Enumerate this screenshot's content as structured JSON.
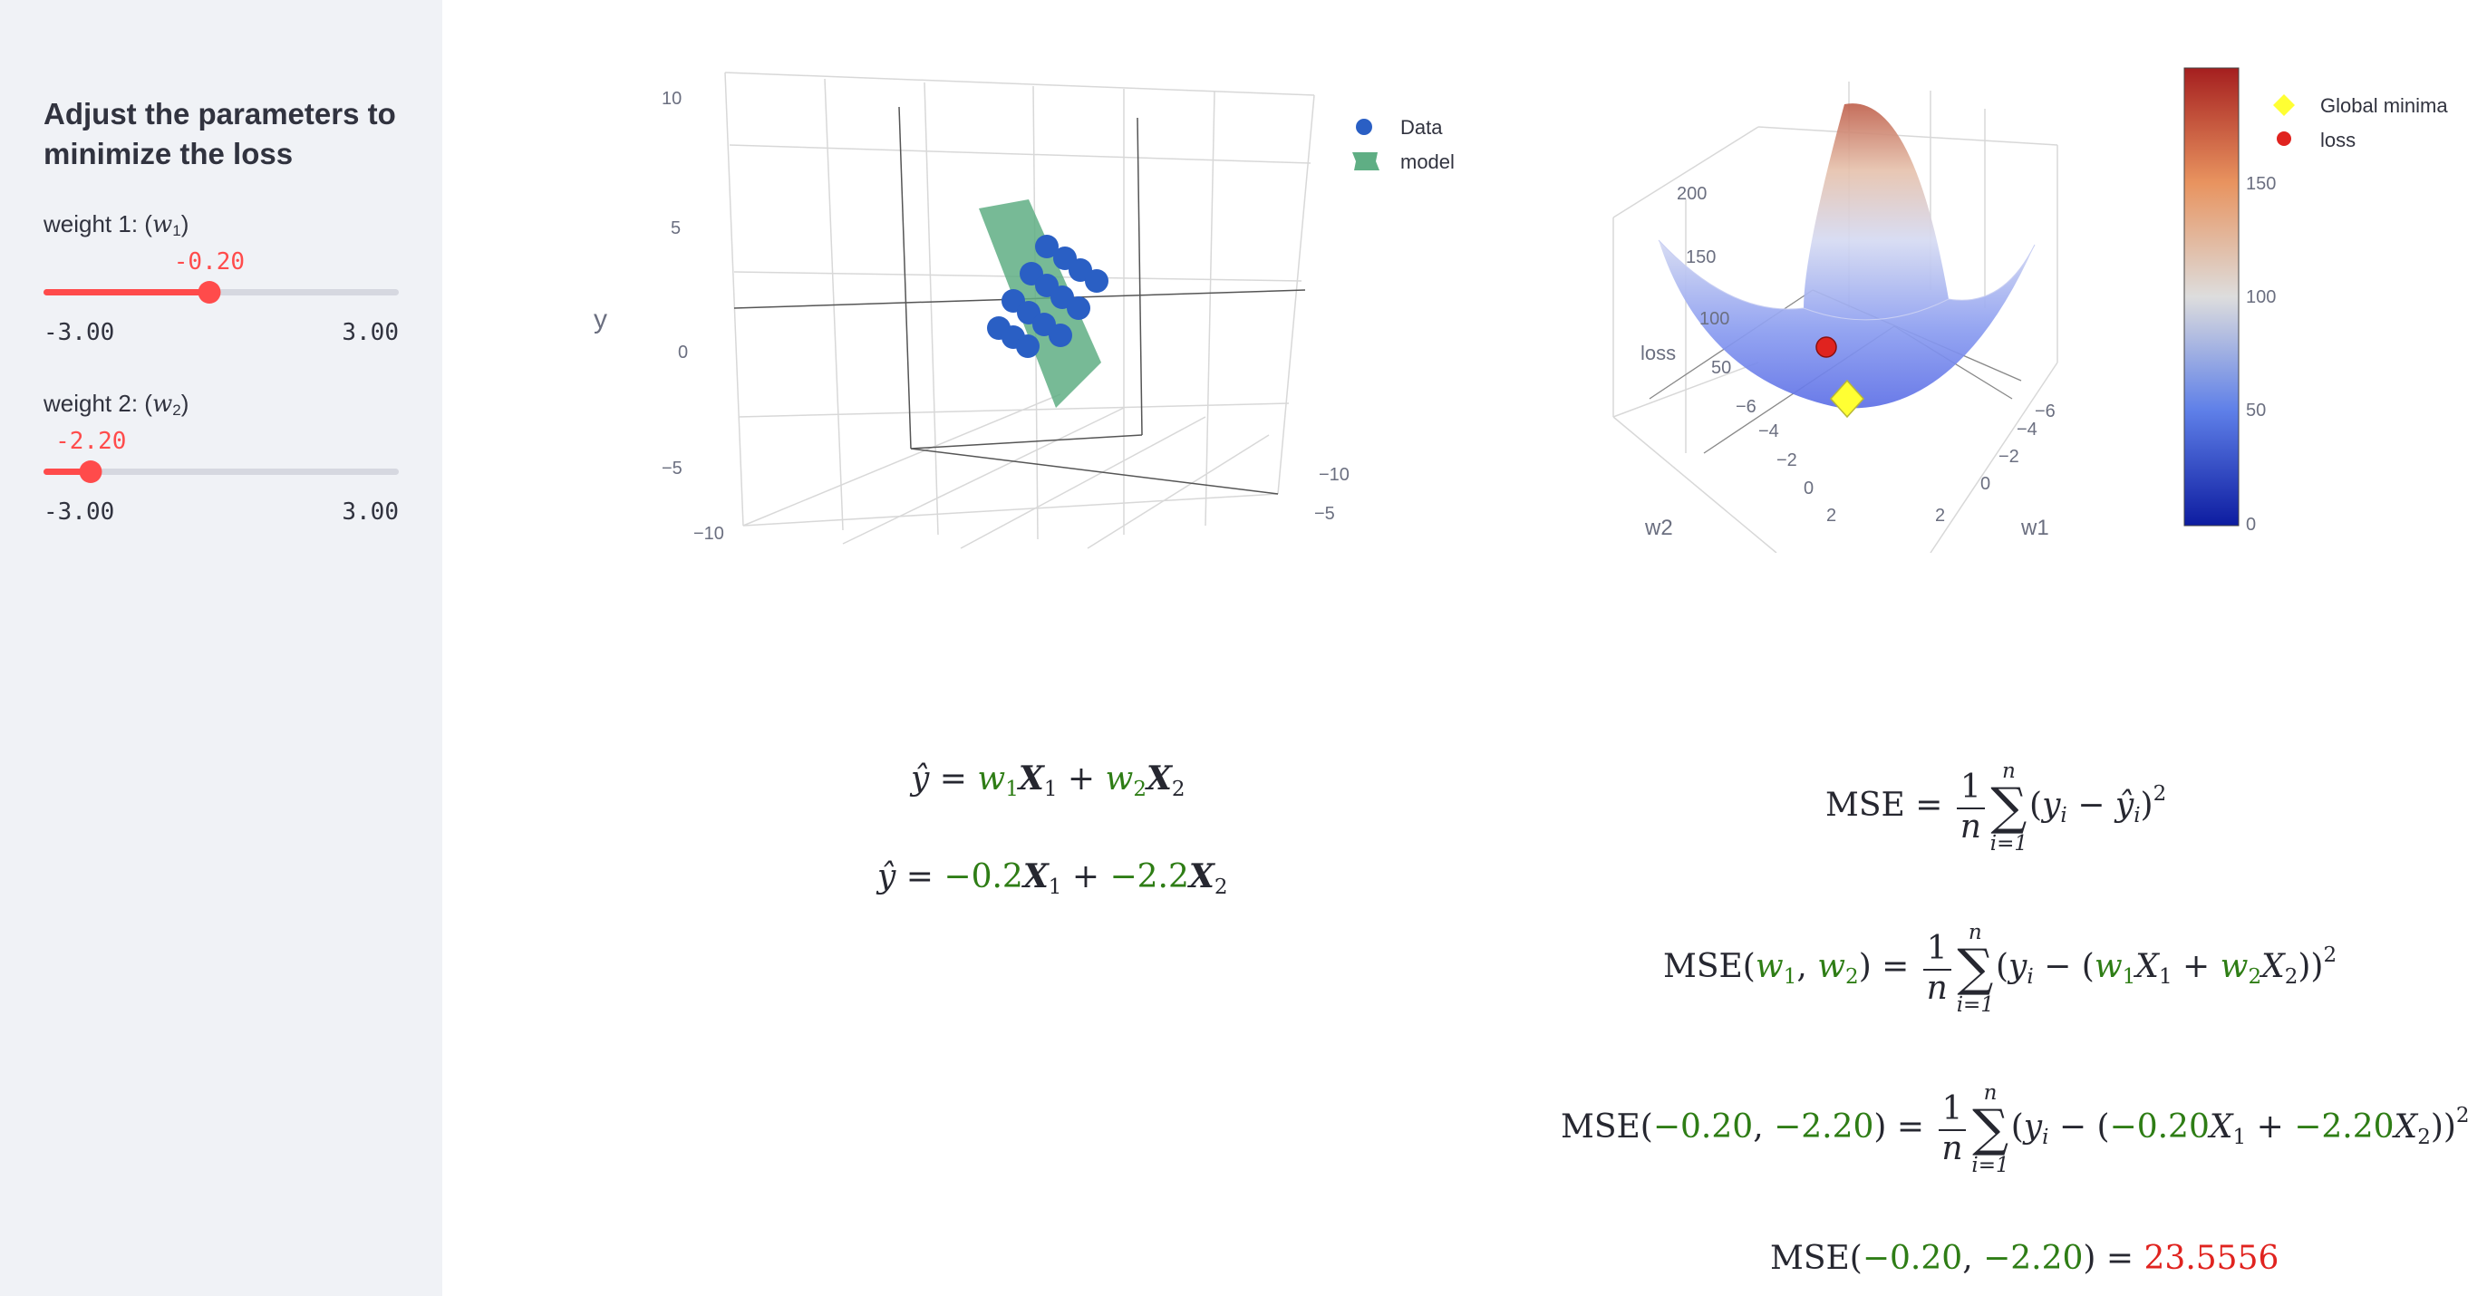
{
  "sidebar": {
    "title": "Adjust the parameters to minimize the loss",
    "sliders": [
      {
        "label_prefix": "weight 1: (",
        "label_var": "w",
        "label_sub": "1",
        "label_suffix": ")",
        "value_text": "-0.20",
        "value": -0.2,
        "min_text": "-3.00",
        "max_text": "3.00",
        "min": -3,
        "max": 3
      },
      {
        "label_prefix": "weight 2: (",
        "label_var": "w",
        "label_sub": "2",
        "label_suffix": ")",
        "value_text": "-2.20",
        "value": -2.2,
        "min_text": "-3.00",
        "max_text": "3.00",
        "min": -3,
        "max": 3
      }
    ]
  },
  "colors": {
    "accent": "#ff4b4b",
    "data_points": "#2a5fc4",
    "model_plane": "#5fae84",
    "weights_green": "#2e7d15",
    "mse_red": "#e0231f",
    "global_minima": "#ffff33",
    "loss_marker": "#e0231f"
  },
  "chart_left": {
    "ylabel": "y",
    "z_ticks": [
      "10",
      "5",
      "0",
      "−5",
      "−10"
    ],
    "x_ticks": [
      "−10",
      "−5"
    ],
    "legend": [
      {
        "name": "Data",
        "icon": "circle-marker-icon"
      },
      {
        "name": "model",
        "icon": "surface-icon"
      }
    ]
  },
  "chart_right": {
    "zlabel": "loss",
    "xlabel": "w1",
    "ylabel": "w2",
    "z_ticks": [
      "200",
      "150",
      "100",
      "50"
    ],
    "w2_ticks": [
      "−6",
      "−4",
      "−2",
      "0",
      "2"
    ],
    "w1_ticks": [
      "−6",
      "−4",
      "−2",
      "0",
      "2"
    ],
    "colorbar_ticks": [
      "150",
      "100",
      "50",
      "0"
    ],
    "colorbar_range": [
      0,
      200
    ],
    "legend": [
      {
        "name": "Global minima",
        "icon": "diamond-marker-icon"
      },
      {
        "name": "loss",
        "icon": "circle-marker-icon"
      }
    ]
  },
  "equations": {
    "pred_w1": "−0.2",
    "pred_w2": "−2.2",
    "mse_w1": "−0.20",
    "mse_w2": "−2.20",
    "mse_result": "23.5556"
  }
}
